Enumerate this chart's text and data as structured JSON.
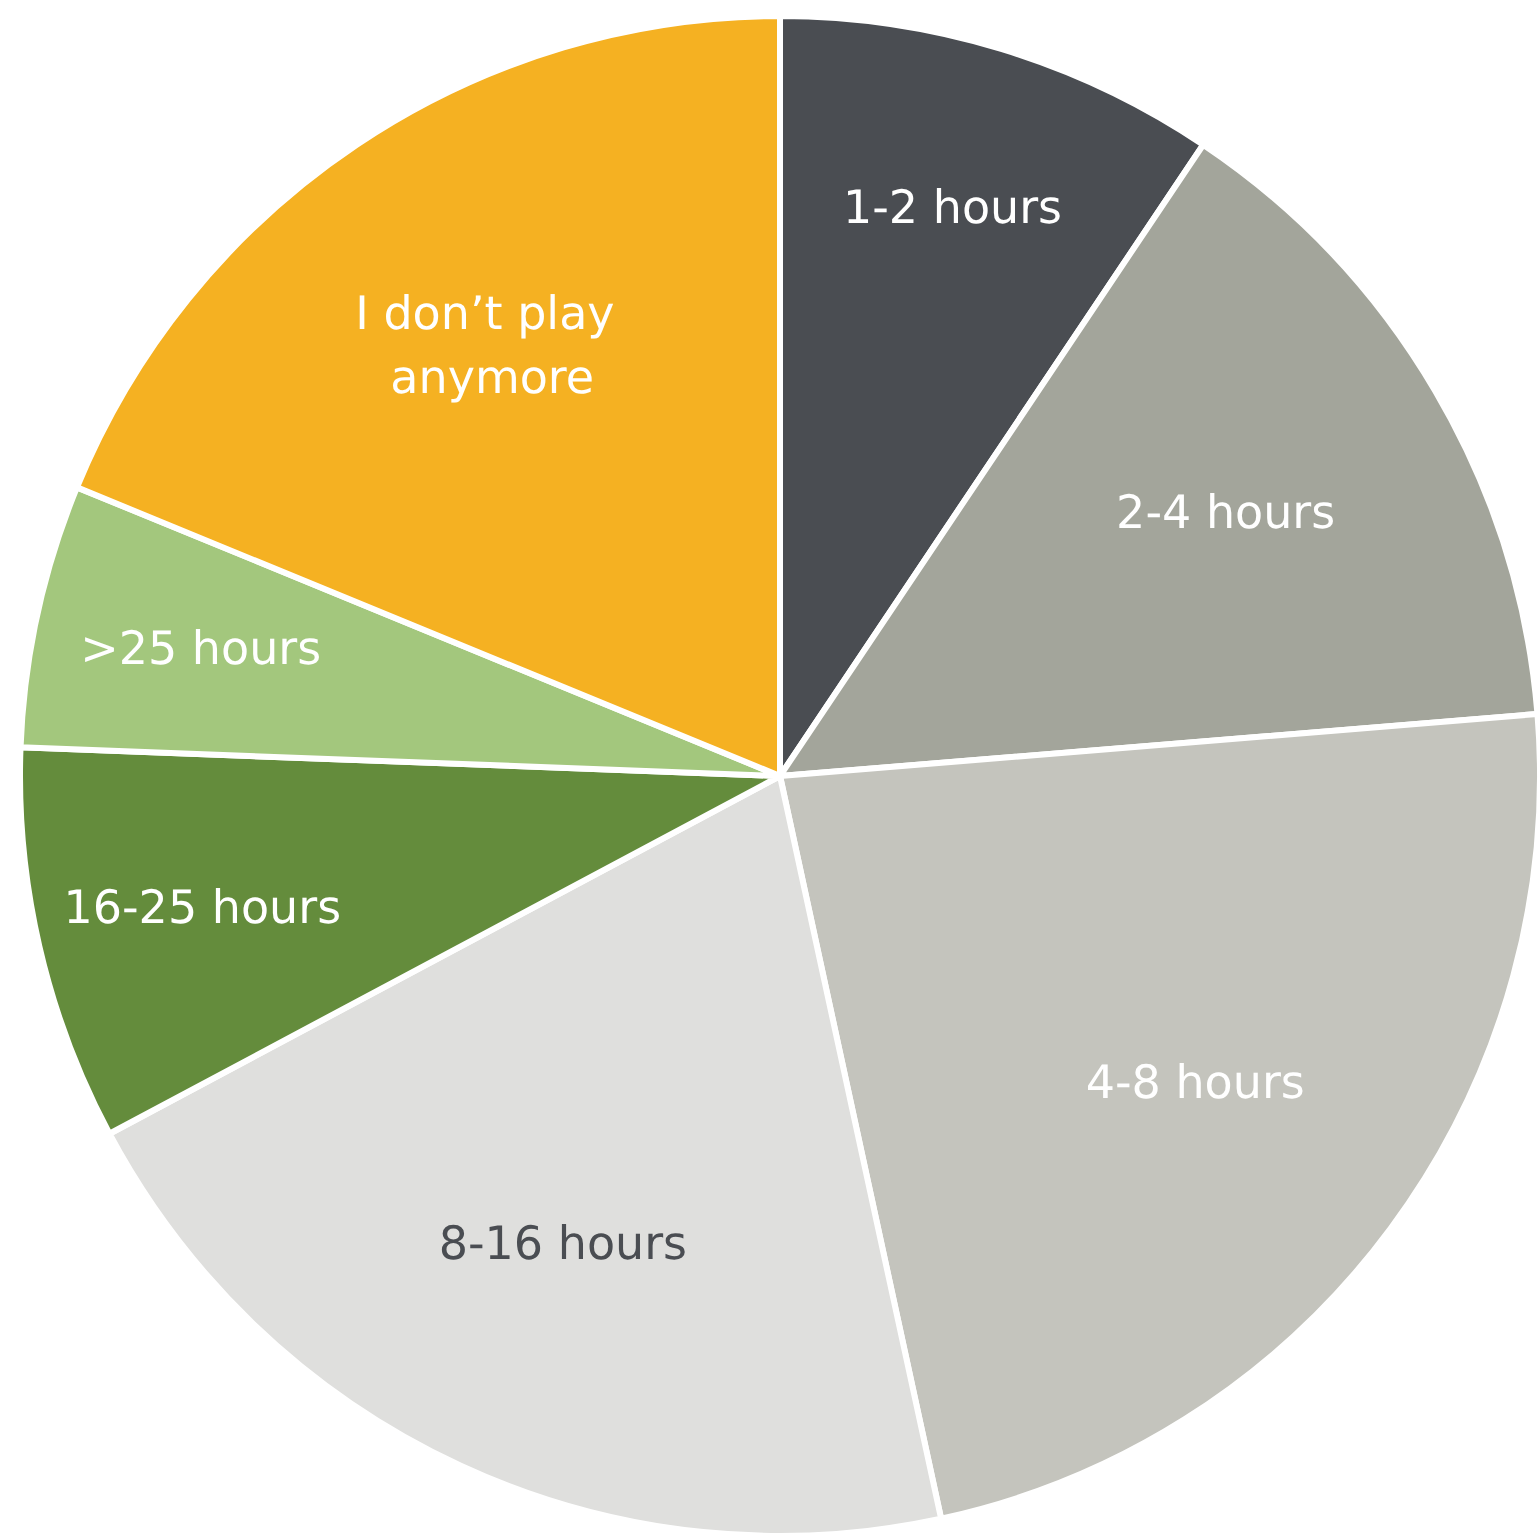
{
  "chart_data": {
    "type": "pie",
    "categories": [
      "1-2 hours",
      "2-4 hours",
      "4-8 hours",
      "8-16 hours",
      "16-25 hours",
      ">25 hours",
      "I don’t play anymore"
    ],
    "values": [
      9.4,
      14.3,
      22.9,
      20.6,
      8.4,
      5.6,
      18.8
    ],
    "colors": [
      "#4a4d52",
      "#a3a59b",
      "#c4c4bd",
      "#dfdfdd",
      "#648c3c",
      "#a3c77d",
      "#f5b122"
    ],
    "legend": false
  }
}
